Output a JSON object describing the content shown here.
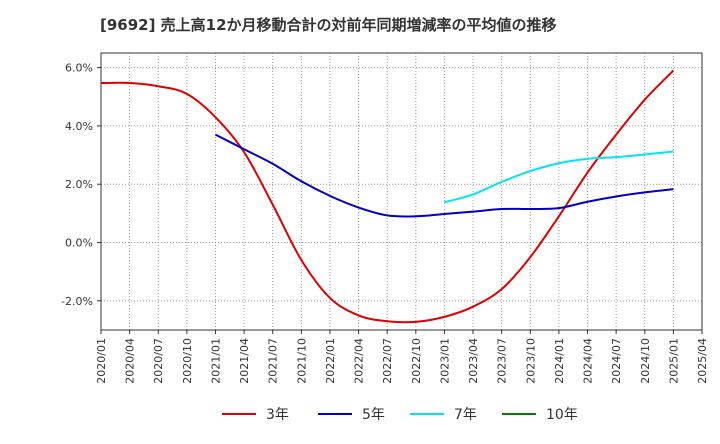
{
  "chart_data": {
    "type": "line",
    "title": "[9692]  売上高12か月移動合計の対前年同期増減率の平均値の推移",
    "xlabel": "",
    "ylabel": "",
    "ylim": [
      -3.0,
      6.5
    ],
    "yticks": [
      -2.0,
      0.0,
      2.0,
      4.0,
      6.0
    ],
    "ytick_labels": [
      "-2.0%",
      "0.0%",
      "2.0%",
      "4.0%",
      "6.0%"
    ],
    "xtick_labels": [
      "2020/01",
      "2020/04",
      "2020/07",
      "2020/10",
      "2021/01",
      "2021/04",
      "2021/07",
      "2021/10",
      "2022/01",
      "2022/04",
      "2022/07",
      "2022/10",
      "2023/01",
      "2023/04",
      "2023/07",
      "2023/10",
      "2024/01",
      "2024/04",
      "2024/07",
      "2024/10",
      "2025/01",
      "2025/04"
    ],
    "grid": true,
    "legend_position": "bottom",
    "series": [
      {
        "name": "3年",
        "color": "#e00000",
        "points": [
          [
            "2020/01",
            5.47
          ],
          [
            "2020/04",
            5.47
          ],
          [
            "2020/07",
            5.36
          ],
          [
            "2020/10",
            5.1
          ],
          [
            "2021/01",
            4.3
          ],
          [
            "2021/04",
            3.1
          ],
          [
            "2021/07",
            1.3
          ],
          [
            "2021/10",
            -0.6
          ],
          [
            "2022/01",
            -1.9
          ],
          [
            "2022/04",
            -2.5
          ],
          [
            "2022/07",
            -2.7
          ],
          [
            "2022/10",
            -2.72
          ],
          [
            "2023/01",
            -2.55
          ],
          [
            "2023/04",
            -2.2
          ],
          [
            "2023/07",
            -1.6
          ],
          [
            "2023/10",
            -0.5
          ],
          [
            "2024/01",
            0.9
          ],
          [
            "2024/04",
            2.4
          ],
          [
            "2024/07",
            3.7
          ],
          [
            "2024/10",
            4.9
          ],
          [
            "2025/01",
            5.9
          ]
        ]
      },
      {
        "name": "5年",
        "color": "#0000cc",
        "points": [
          [
            "2021/01",
            3.7
          ],
          [
            "2021/04",
            3.2
          ],
          [
            "2021/07",
            2.7
          ],
          [
            "2021/10",
            2.1
          ],
          [
            "2022/01",
            1.6
          ],
          [
            "2022/04",
            1.2
          ],
          [
            "2022/07",
            0.93
          ],
          [
            "2022/10",
            0.9
          ],
          [
            "2023/01",
            0.98
          ],
          [
            "2023/04",
            1.06
          ],
          [
            "2023/07",
            1.15
          ],
          [
            "2023/10",
            1.15
          ],
          [
            "2024/01",
            1.18
          ],
          [
            "2024/04",
            1.4
          ],
          [
            "2024/07",
            1.58
          ],
          [
            "2024/10",
            1.72
          ],
          [
            "2025/01",
            1.83
          ]
        ]
      },
      {
        "name": "7年",
        "color": "#00e5ee",
        "points": [
          [
            "2023/01",
            1.38
          ],
          [
            "2023/04",
            1.65
          ],
          [
            "2023/07",
            2.08
          ],
          [
            "2023/10",
            2.45
          ],
          [
            "2024/01",
            2.72
          ],
          [
            "2024/04",
            2.87
          ],
          [
            "2024/07",
            2.93
          ],
          [
            "2024/10",
            3.02
          ],
          [
            "2025/01",
            3.12
          ]
        ]
      },
      {
        "name": "10年",
        "color": "#008000",
        "points": []
      }
    ]
  }
}
